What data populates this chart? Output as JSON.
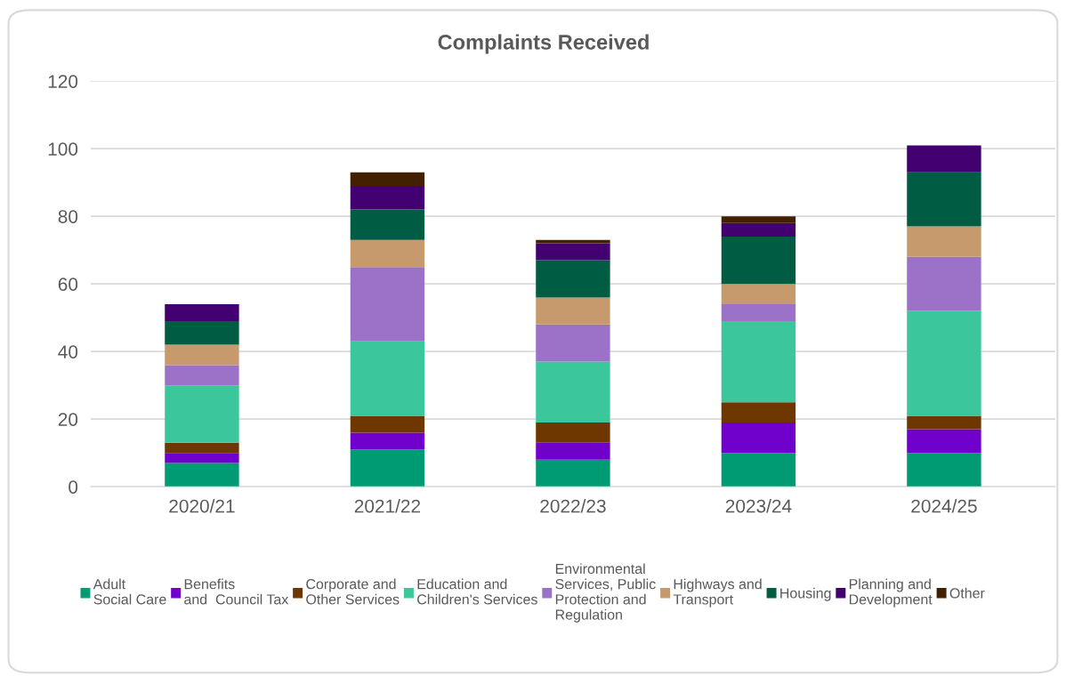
{
  "chart_data": {
    "type": "bar",
    "stacked": true,
    "title": "Complaints Received",
    "categories": [
      "2020/21",
      "2021/22",
      "2022/23",
      "2023/24",
      "2024/25"
    ],
    "series": [
      {
        "name": "Adult\nSocial Care",
        "color": "#009b72",
        "values": [
          7,
          11,
          8,
          10,
          10
        ]
      },
      {
        "name": "Benefits\nand  Council Tax",
        "color": "#7000cc",
        "values": [
          3,
          5,
          5,
          9,
          7
        ]
      },
      {
        "name": "Corporate and\nOther Services",
        "color": "#6e3700",
        "values": [
          3,
          5,
          6,
          6,
          4
        ]
      },
      {
        "name": "Education and\nChildren's Services",
        "color": "#3bc79b",
        "values": [
          17,
          22,
          18,
          24,
          31
        ]
      },
      {
        "name": "Environmental\nServices, Public\nProtection and\nRegulation",
        "color": "#9b72c8",
        "values": [
          6,
          22,
          11,
          5,
          16
        ]
      },
      {
        "name": "Highways and\nTransport",
        "color": "#c79a6e",
        "values": [
          6,
          8,
          8,
          6,
          9
        ]
      },
      {
        "name": "Housing",
        "color": "#005c43",
        "values": [
          7,
          9,
          11,
          14,
          16
        ]
      },
      {
        "name": "Planning and\nDevelopment",
        "color": "#420070",
        "values": [
          5,
          7,
          5,
          4,
          8
        ]
      },
      {
        "name": "Other",
        "color": "#432000",
        "values": [
          0,
          4,
          1,
          2,
          0
        ]
      }
    ],
    "ylim": [
      0,
      120
    ],
    "yticks": [
      0,
      20,
      40,
      60,
      80,
      100,
      120
    ],
    "grid": "y",
    "legend": "bottom"
  }
}
